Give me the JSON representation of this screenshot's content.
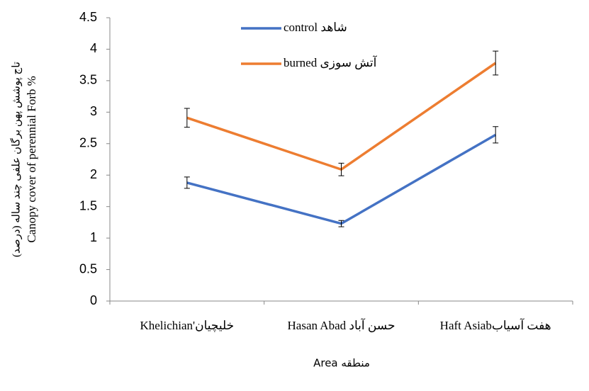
{
  "chart_data": {
    "type": "line",
    "y_label": [
      "تاج پوشش پهن برگان علفی چند ساله (درصد)",
      "Canopy cover of perennial Forb %"
    ],
    "x_label": "Area منطقه",
    "categories": [
      "Khelichian'خلیچیان",
      "Hasan Abad حسن آباد",
      "Haft Asiabهفت آسیاب"
    ],
    "series": [
      {
        "name": "control شاهد",
        "color": "#4472c4",
        "values": [
          1.88,
          1.23,
          2.64
        ],
        "errors": [
          0.09,
          0.05,
          0.13
        ]
      },
      {
        "name": "burned آتش سوزی",
        "color": "#ed7d31",
        "values": [
          2.91,
          2.09,
          3.78
        ],
        "errors": [
          0.15,
          0.1,
          0.19
        ]
      }
    ],
    "ylim": [
      0,
      4.5
    ],
    "yticks": [
      0,
      0.5,
      1,
      1.5,
      2,
      2.5,
      3,
      3.5,
      4,
      4.5
    ],
    "grid": false,
    "legend": "top-left"
  }
}
